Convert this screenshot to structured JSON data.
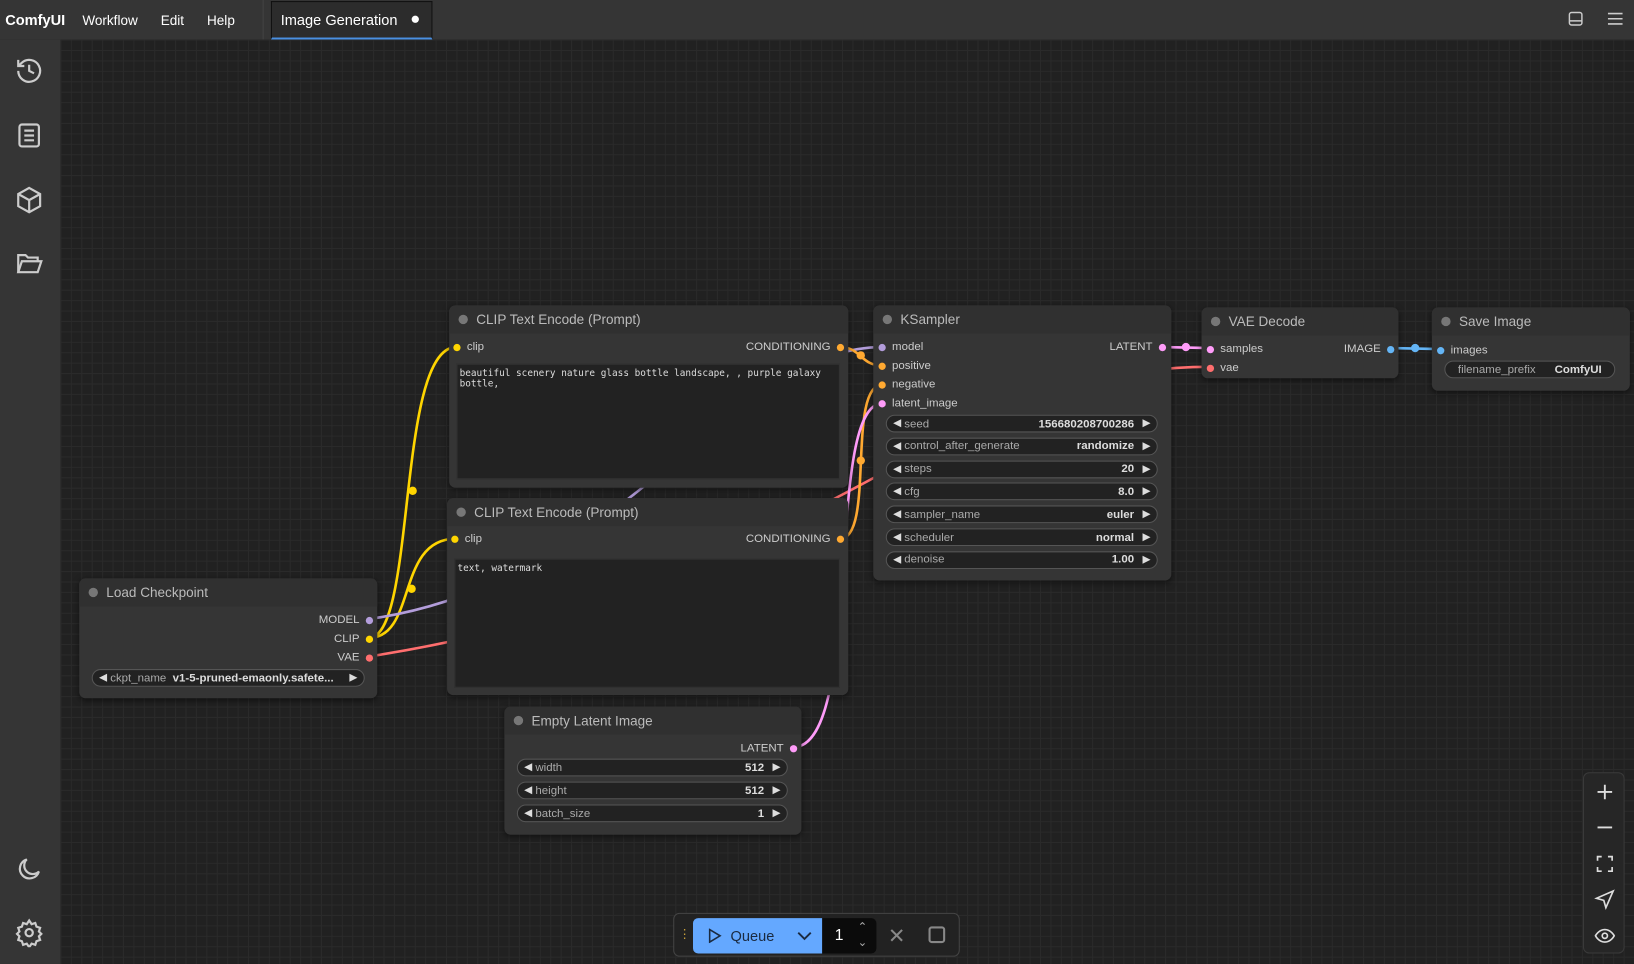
{
  "app": {
    "name": "ComfyUI",
    "menu": [
      "Workflow",
      "Edit",
      "Help"
    ],
    "tab": "Image Generation",
    "tab_unsaved": true
  },
  "sidebar": {
    "icons": [
      "history-icon",
      "queue-list-icon",
      "model-library-icon",
      "workflows-folder-icon"
    ],
    "bottom": [
      "theme-moon-icon",
      "settings-gear-icon"
    ]
  },
  "nodes": {
    "clip1": {
      "title": "CLIP Text Encode (Prompt)",
      "input": "clip",
      "output": "CONDITIONING",
      "text": "beautiful scenery nature glass bottle landscape, , purple galaxy bottle,"
    },
    "clip2": {
      "title": "CLIP Text Encode (Prompt)",
      "input": "clip",
      "output": "CONDITIONING",
      "text": "text, watermark"
    },
    "ksampler": {
      "title": "KSampler",
      "inputs": [
        "model",
        "positive",
        "negative",
        "latent_image"
      ],
      "output": "LATENT",
      "widgets": [
        {
          "label": "seed",
          "value": "156680208700286"
        },
        {
          "label": "control_after_generate",
          "value": "randomize"
        },
        {
          "label": "steps",
          "value": "20"
        },
        {
          "label": "cfg",
          "value": "8.0"
        },
        {
          "label": "sampler_name",
          "value": "euler"
        },
        {
          "label": "scheduler",
          "value": "normal"
        },
        {
          "label": "denoise",
          "value": "1.00"
        }
      ]
    },
    "vae": {
      "title": "VAE Decode",
      "inputs": [
        "samples",
        "vae"
      ],
      "output": "IMAGE"
    },
    "save": {
      "title": "Save Image",
      "input": "images",
      "widget": {
        "label": "filename_prefix",
        "value": "ComfyUI"
      }
    },
    "ckpt": {
      "title": "Load Checkpoint",
      "outputs": [
        "MODEL",
        "CLIP",
        "VAE"
      ],
      "widget": {
        "label": "ckpt_name",
        "value": "v1-5-pruned-emaonly.safete..."
      }
    },
    "latent": {
      "title": "Empty Latent Image",
      "output": "LATENT",
      "widgets": [
        {
          "label": "width",
          "value": "512"
        },
        {
          "label": "height",
          "value": "512"
        },
        {
          "label": "batch_size",
          "value": "1"
        }
      ]
    }
  },
  "queue": {
    "label": "Queue",
    "count": "1"
  },
  "colors": {
    "clip": "#ffd500",
    "model": "#b39ddb",
    "vae": "#ff6e6e",
    "conditioning": "#ffa931",
    "latent": "#ff9cf9",
    "image": "#64b5f6",
    "accent": "#64a8ff"
  }
}
